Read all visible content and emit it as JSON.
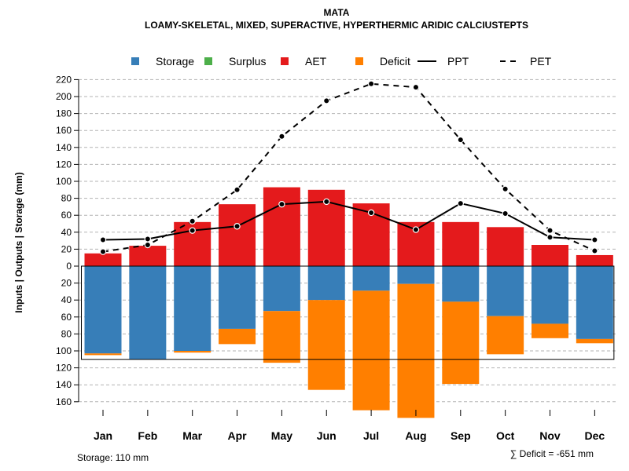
{
  "chart_data": {
    "type": "bar",
    "title": "MATA",
    "subtitle": "LOAMY-SKELETAL, MIXED, SUPERACTIVE, HYPERTHERMIC ARIDIC CALCIUSTEPTS",
    "ylabel": "Inputs | Outputs | Storage    (mm)",
    "ylim": [
      -160,
      220
    ],
    "yticks": [
      220,
      200,
      180,
      160,
      140,
      120,
      100,
      80,
      60,
      40,
      20,
      0,
      -20,
      -40,
      -60,
      -80,
      -100,
      -120,
      -140,
      -160
    ],
    "ytick_labels": [
      "220",
      "200",
      "180",
      "160",
      "140",
      "120",
      "100",
      "80",
      "60",
      "40",
      "20",
      "0",
      "20",
      "40",
      "60",
      "80",
      "100",
      "120",
      "140",
      "160"
    ],
    "categories": [
      "Jan",
      "Feb",
      "Mar",
      "Apr",
      "May",
      "Jun",
      "Jul",
      "Aug",
      "Sep",
      "Oct",
      "Nov",
      "Dec"
    ],
    "storage_capacity": 110,
    "legend": {
      "placement": "top",
      "items": [
        {
          "label": "Storage",
          "kind": "box",
          "color": "#377EB8"
        },
        {
          "label": "Surplus",
          "kind": "box",
          "color": "#4DAF4A"
        },
        {
          "label": "AET",
          "kind": "box",
          "color": "#E41A1C"
        },
        {
          "label": "Deficit",
          "kind": "box",
          "color": "#FF7F00"
        },
        {
          "label": "PPT",
          "kind": "line-solid",
          "color": "#000000"
        },
        {
          "label": "PET",
          "kind": "line-dashed",
          "color": "#000000"
        }
      ]
    },
    "series": [
      {
        "name": "AET",
        "color": "#E41A1C",
        "values": [
          15,
          24,
          52,
          73,
          93,
          90,
          74,
          52,
          52,
          46,
          25,
          13
        ]
      },
      {
        "name": "Storage",
        "color": "#377EB8",
        "values": [
          103,
          110,
          100,
          74,
          53,
          40,
          29,
          21,
          42,
          59,
          68,
          86
        ]
      },
      {
        "name": "Deficit",
        "color": "#FF7F00",
        "values": [
          2,
          0,
          2,
          18,
          61,
          106,
          141,
          158,
          97,
          45,
          17,
          5
        ]
      },
      {
        "name": "Surplus",
        "color": "#4DAF4A",
        "values": [
          0,
          0,
          0,
          0,
          0,
          0,
          0,
          0,
          0,
          0,
          0,
          0
        ]
      },
      {
        "name": "PPT",
        "color": "#000000",
        "values": [
          31,
          32,
          42,
          47,
          73,
          76,
          63,
          43,
          74,
          62,
          34,
          31
        ]
      },
      {
        "name": "PET",
        "color": "#000000",
        "values": [
          17,
          25,
          53,
          90,
          153,
          195,
          215,
          211,
          149,
          91,
          42,
          18
        ]
      }
    ],
    "footer_left": "Storage: 110 mm",
    "footer_right": "∑ Deficit = -651 mm"
  }
}
